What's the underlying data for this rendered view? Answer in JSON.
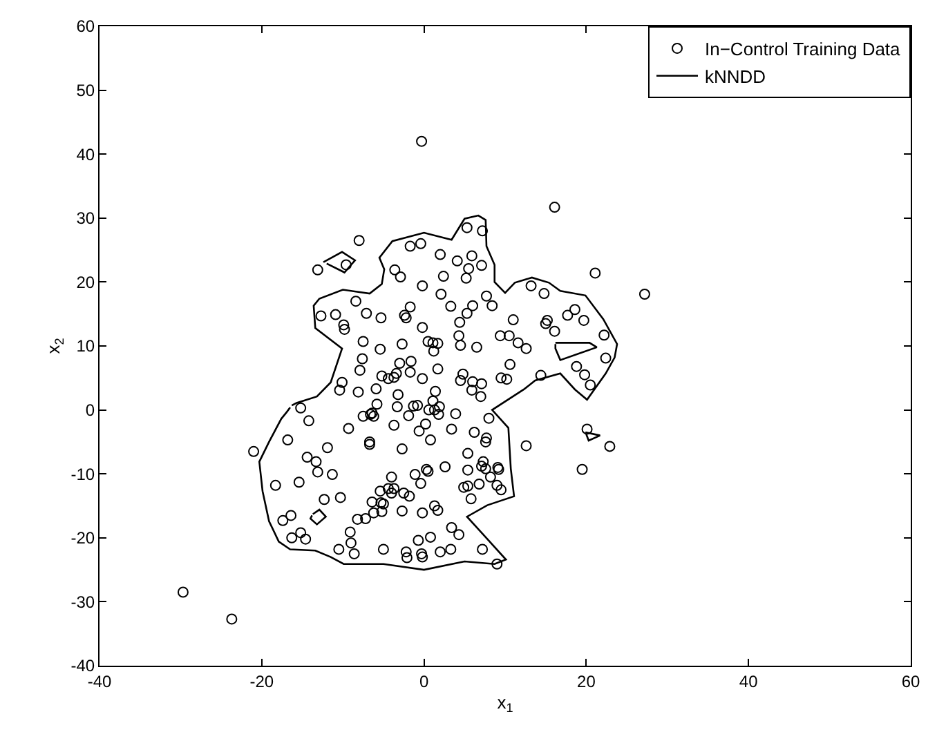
{
  "chart_data": {
    "type": "scatter",
    "xlabel": "x$_{1}$",
    "ylabel": "x$_{2}$",
    "xlim": [
      -40,
      60
    ],
    "ylim": [
      -40,
      60
    ],
    "xticks": [
      -40,
      -20,
      0,
      20,
      40,
      60
    ],
    "yticks": [
      -40,
      -30,
      -20,
      -10,
      0,
      10,
      20,
      30,
      40,
      50,
      60
    ],
    "grid": false,
    "legend": "top right",
    "series": [
      {
        "name": "In−Control Training Data",
        "type": "scatter",
        "marker": "circle",
        "color": "#000000",
        "x": [
          -0.3,
          -8.0,
          -13.1,
          -9.6,
          -1.7,
          -0.4,
          2.0,
          4.1,
          -3.6,
          -2.9,
          2.4,
          -0.2,
          2.1,
          3.3,
          -8.4,
          -12.7,
          -10.9,
          -7.1,
          -5.3,
          -1.7,
          -2.4,
          -2.2,
          -9.9,
          -9.8,
          -0.2,
          4.4,
          4.3,
          0.5,
          1.1,
          1.7,
          1.2,
          -7.5,
          -2.7,
          -5.4,
          4.5,
          -7.6,
          -1.6,
          -1.7,
          -3.0,
          -7.9,
          1.7,
          -5.2,
          -4.4,
          -3.7,
          -3.4,
          -0.2,
          4.5,
          -10.1,
          -10.4,
          -8.1,
          -5.9,
          -3.2,
          1.4,
          -15.2,
          -5.8,
          -3.3,
          -1.3,
          -0.8,
          1.1,
          1.3,
          1.9,
          3.9,
          -6.6,
          16.1,
          5.3,
          7.2,
          5.9,
          5.5,
          7.1,
          5.2,
          21.1,
          27.2,
          13.2,
          14.8,
          7.7,
          8.4,
          6.0,
          5.3,
          11.0,
          18.6,
          17.7,
          19.7,
          15.2,
          15.0,
          16.1,
          6.5,
          9.4,
          10.5,
          11.6,
          12.6,
          22.2,
          22.4,
          10.6,
          18.8,
          19.8,
          20.5,
          14.4,
          9.5,
          10.2,
          4.8,
          6.0,
          7.1,
          5.9,
          7.0,
          8.0,
          -21.0,
          -14.2,
          -16.8,
          -9.3,
          -7.5,
          -6.4,
          -6.2,
          -3.7,
          -1.9,
          0.6,
          1.8,
          0.2,
          -0.6,
          3.4,
          0.8,
          -6.7,
          -6.7,
          -11.9,
          -2.7,
          -14.4,
          -13.3,
          -13.1,
          -11.3,
          -18.3,
          -15.4,
          -4.0,
          -1.1,
          0.3,
          0.5,
          2.6,
          -0.4,
          4.9,
          -5.4,
          -4.4,
          -3.7,
          -4.0,
          -2.5,
          -1.8,
          -12.3,
          -10.3,
          -6.4,
          -5.3,
          -5.0,
          -8.2,
          -7.2,
          -6.2,
          -5.2,
          -2.7,
          -0.2,
          1.3,
          1.7,
          -17.4,
          -16.4,
          -16.3,
          -15.2,
          -14.6,
          -9.1,
          -9.0,
          -8.6,
          -10.5,
          -5.0,
          -2.2,
          -2.1,
          -0.3,
          -0.2,
          -0.7,
          0.8,
          2.0,
          3.3,
          3.4,
          4.3,
          6.2,
          7.7,
          7.6,
          12.6,
          5.4,
          7.3,
          7.1,
          7.6,
          8.2,
          9.1,
          9.2,
          5.4,
          9.0,
          9.5,
          5.4,
          6.8,
          5.8,
          20.1,
          22.9,
          19.5,
          7.2,
          9.0,
          -29.7,
          -23.7
        ],
        "values": [
          42.0,
          26.5,
          21.9,
          22.7,
          25.6,
          26.0,
          24.3,
          23.3,
          21.9,
          20.8,
          20.9,
          19.4,
          18.1,
          16.2,
          17.0,
          14.7,
          14.9,
          15.1,
          14.4,
          16.1,
          14.8,
          14.4,
          13.3,
          12.6,
          12.9,
          13.7,
          11.6,
          10.7,
          10.5,
          10.4,
          9.2,
          10.7,
          10.3,
          9.5,
          10.1,
          8.0,
          7.6,
          5.9,
          7.3,
          6.2,
          6.4,
          5.3,
          4.9,
          5.1,
          5.7,
          4.9,
          4.6,
          4.3,
          3.1,
          2.8,
          3.3,
          2.4,
          2.9,
          0.3,
          0.9,
          0.5,
          0.6,
          0.7,
          1.4,
          0.0,
          0.5,
          -0.6,
          -0.7,
          31.7,
          28.5,
          28.0,
          24.1,
          22.1,
          22.6,
          20.6,
          21.4,
          18.1,
          19.4,
          18.2,
          17.8,
          16.3,
          16.3,
          15.1,
          14.1,
          15.7,
          14.8,
          14.0,
          14.0,
          13.5,
          12.3,
          9.8,
          11.6,
          11.6,
          10.5,
          9.6,
          11.7,
          8.1,
          7.1,
          6.8,
          5.5,
          3.9,
          5.4,
          5.0,
          4.8,
          5.6,
          4.4,
          4.1,
          3.1,
          2.1,
          -1.3,
          -6.5,
          -1.7,
          -4.7,
          -2.9,
          -1.0,
          -0.5,
          -1.0,
          -2.4,
          -0.9,
          0.0,
          -0.7,
          -2.2,
          -3.3,
          -3.0,
          -4.7,
          -5.0,
          -5.4,
          -5.9,
          -6.1,
          -7.4,
          -8.1,
          -9.7,
          -10.1,
          -11.8,
          -11.3,
          -10.5,
          -10.1,
          -9.3,
          -9.6,
          -8.9,
          -11.5,
          -12.1,
          -12.7,
          -12.3,
          -12.3,
          -13.0,
          -13.0,
          -13.5,
          -14.0,
          -13.7,
          -14.4,
          -14.5,
          -14.7,
          -17.1,
          -17.0,
          -16.1,
          -15.9,
          -15.8,
          -16.1,
          -15.0,
          -15.7,
          -17.3,
          -16.5,
          -20.0,
          -19.2,
          -20.2,
          -19.1,
          -20.8,
          -22.5,
          -21.8,
          -21.8,
          -22.2,
          -23.1,
          -22.5,
          -23.0,
          -20.4,
          -19.9,
          -22.2,
          -21.8,
          -18.4,
          -19.5,
          -3.5,
          -4.4,
          -5.0,
          -5.6,
          -6.8,
          -8.1,
          -8.8,
          -9.2,
          -10.5,
          -9.0,
          -9.3,
          -9.4,
          -11.8,
          -12.5,
          -11.9,
          -11.6,
          -13.9,
          -3.0,
          -5.7,
          -9.3,
          -21.8,
          -24.1,
          -28.5,
          -32.7
        ]
      },
      {
        "name": "kNNDD",
        "type": "line",
        "line_style": "solid",
        "color": "#000000",
        "x": [
          -16.3,
          -15.7,
          -13.2,
          -11.5,
          -10.1,
          -13.4,
          -13.6,
          -12.9,
          -10.0,
          -6.7,
          -5.2,
          -4.9,
          -5.5,
          -3.9,
          0.0,
          3.4,
          5.0,
          6.7,
          7.6,
          7.7,
          8.7,
          8.7,
          10.0,
          11.2,
          13.3,
          15.4,
          16.8,
          19.9,
          22.1,
          23.8,
          23.5,
          22.4,
          20.1,
          18.6,
          16.8,
          13.7,
          12.3,
          8.4,
          10.4,
          10.7,
          11.1,
          7.8,
          5.3,
          7.6,
          10.1,
          8.7,
          5.0,
          0.0,
          -5.0,
          -9.9,
          -11.5,
          -13.4,
          -16.5,
          -17.9,
          -19.1,
          -19.9,
          -20.3,
          -19.1,
          -17.6,
          -16.9,
          -16.5
        ],
        "values": [
          0.7,
          1.1,
          2.1,
          4.3,
          9.6,
          12.8,
          16.3,
          17.4,
          18.8,
          18.2,
          19.7,
          22.0,
          23.8,
          26.4,
          27.7,
          26.6,
          29.9,
          30.4,
          29.7,
          25.6,
          22.7,
          20.0,
          18.3,
          19.9,
          20.7,
          19.9,
          18.6,
          17.9,
          14.2,
          10.3,
          8.2,
          5.7,
          1.6,
          3.2,
          5.7,
          4.6,
          3.2,
          0.0,
          -2.8,
          -9.2,
          -13.5,
          -14.9,
          -16.7,
          -19.9,
          -23.4,
          -24.1,
          -23.7,
          -25.0,
          -24.1,
          -24.1,
          -23.0,
          -22.0,
          -21.8,
          -20.6,
          -17.4,
          -12.7,
          -8.1,
          -5.0,
          -1.4,
          -0.3,
          0.4
        ]
      },
      {
        "type": "line",
        "line_style": "solid",
        "color": "#000000",
        "x": [
          -12.4,
          -10.1,
          -8.5,
          -9.8,
          -12.0
        ],
        "values": [
          23.1,
          24.7,
          23.4,
          21.5,
          22.9
        ]
      },
      {
        "type": "line",
        "line_style": "solid",
        "color": "#000000",
        "x": [
          16.2,
          20.4,
          21.3,
          16.8,
          16.2,
          16.2
        ],
        "values": [
          10.5,
          10.5,
          9.8,
          7.8,
          9.6,
          10.3
        ]
      },
      {
        "type": "line",
        "line_style": "solid",
        "color": "#000000",
        "x": [
          -13.7,
          -12.9,
          -12.1,
          -13.2,
          -14.0,
          -13.8
        ],
        "values": [
          -16.3,
          -15.6,
          -16.7,
          -17.9,
          -17.0,
          -16.5
        ]
      },
      {
        "type": "line",
        "line_style": "solid",
        "color": "#000000",
        "x": [
          19.9,
          21.7,
          20.3,
          20.0
        ],
        "values": [
          -3.5,
          -4.0,
          -4.8,
          -3.8
        ]
      }
    ]
  }
}
